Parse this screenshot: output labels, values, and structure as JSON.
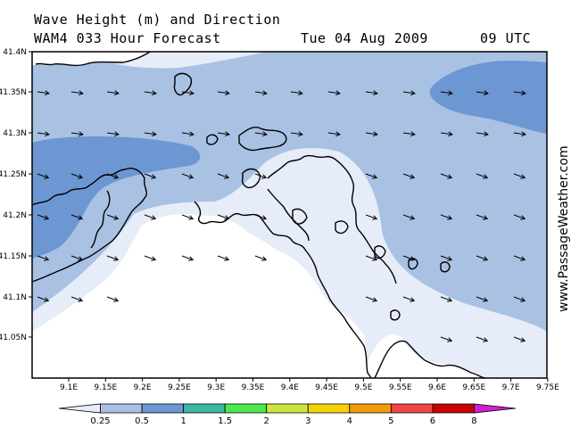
{
  "header": {
    "line1": "Wave Height (m) and Direction",
    "line2": "WAM4 033 Hour Forecast",
    "date": "Tue 04 Aug 2009",
    "time": "09 UTC"
  },
  "map": {
    "y_ticks": [
      "41.4N",
      "41.35N",
      "41.3N",
      "41.25N",
      "41.2N",
      "41.15N",
      "41.1N",
      "41.05N"
    ],
    "x_ticks": [
      "9.1E",
      "9.15E",
      "9.2E",
      "9.25E",
      "9.3E",
      "9.35E",
      "9.4E",
      "9.45E",
      "9.5E",
      "9.55E",
      "9.6E",
      "9.65E",
      "9.7E",
      "9.75E"
    ],
    "wave_direction": "east-southeast",
    "colors": {
      "band_0_25_0_5": "#e6ecf8",
      "band_0_5_1": "#a9c1e3",
      "band_1_1_5": "#6d97d3",
      "land": "#ffffff",
      "coast": "#000000"
    }
  },
  "credit": "www.PassageWeather.com",
  "legend": {
    "labels": [
      "0.25",
      "0.5",
      "1",
      "1.5",
      "2",
      "3",
      "4",
      "5",
      "6",
      "8"
    ],
    "colors": [
      "#e6ecf8",
      "#a9c1e3",
      "#6d97d3",
      "#3cb8a0",
      "#4be84b",
      "#c8e63c",
      "#f5d20a",
      "#f59a0a",
      "#f04646",
      "#c80000",
      "#d21ed2"
    ]
  }
}
